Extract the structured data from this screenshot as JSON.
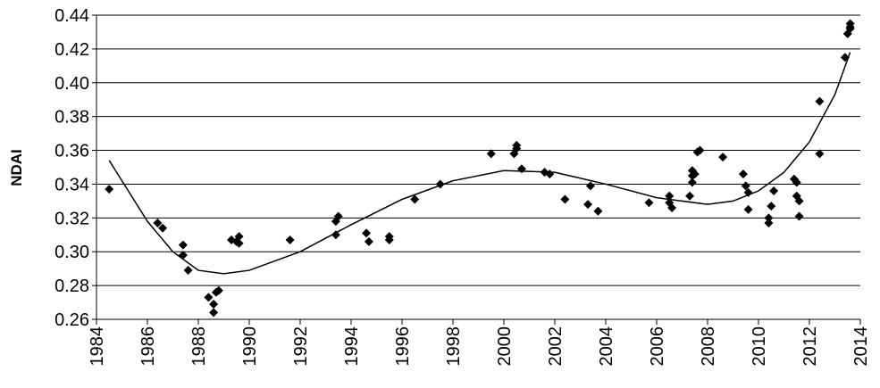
{
  "chart_data": {
    "type": "scatter",
    "y_label": "NDAI",
    "xlim": [
      1984,
      2014
    ],
    "xticks": [
      1984,
      1986,
      1988,
      1990,
      1992,
      1994,
      1996,
      1998,
      2000,
      2002,
      2004,
      2006,
      2008,
      2010,
      2012,
      2014
    ],
    "ylim": [
      0.26,
      0.44
    ],
    "yticks": [
      0.26,
      0.28,
      {
        "value": 0.3,
        "label": "0.30"
      },
      0.32,
      0.34,
      0.36,
      0.38,
      {
        "value": 0.4,
        "label": "0.40"
      },
      0.42,
      0.44
    ],
    "grid": true,
    "series": [
      {
        "color": "#000000",
        "marker": "diamond",
        "x": [
          1984.5,
          1986.4,
          1986.6,
          1987.4,
          1987.4,
          1987.6,
          1988.4,
          1988.6,
          1988.6,
          1988.7,
          1988.8,
          1989.3,
          1989.5,
          1989.6,
          1989.6,
          1991.6,
          1993.4,
          1993.5,
          1993.4,
          1994.6,
          1994.7,
          1995.5,
          1995.5,
          1996.5,
          1997.5,
          1999.5,
          2000.4,
          2000.5,
          2000.5,
          2000.7,
          2001.6,
          2001.8,
          2002.4,
          2003.3,
          2003.4,
          2003.7,
          2005.7,
          2006.5,
          2006.5,
          2006.6,
          2007.3,
          2007.4,
          2007.4,
          2007.4,
          2007.5,
          2007.6,
          2007.7,
          2008.6,
          2009.4,
          2009.5,
          2009.6,
          2009.6,
          2010.4,
          2010.4,
          2010.5,
          2010.6,
          2011.4,
          2011.5,
          2011.5,
          2011.6,
          2011.6,
          2012.4,
          2012.4,
          2013.4,
          2013.5,
          2013.6,
          2013.6,
          2013.6
        ],
        "values": [
          0.337,
          0.317,
          0.314,
          0.304,
          0.298,
          0.289,
          0.273,
          0.269,
          0.264,
          0.276,
          0.277,
          0.307,
          0.306,
          0.309,
          0.305,
          0.307,
          0.318,
          0.321,
          0.31,
          0.311,
          0.306,
          0.309,
          0.307,
          0.331,
          0.34,
          0.358,
          0.358,
          0.361,
          0.363,
          0.349,
          0.347,
          0.346,
          0.331,
          0.328,
          0.339,
          0.324,
          0.329,
          0.333,
          0.329,
          0.326,
          0.333,
          0.341,
          0.345,
          0.348,
          0.346,
          0.359,
          0.36,
          0.356,
          0.346,
          0.339,
          0.335,
          0.325,
          0.32,
          0.317,
          0.327,
          0.336,
          0.343,
          0.341,
          0.333,
          0.33,
          0.321,
          0.358,
          0.389,
          0.415,
          0.429,
          0.432,
          0.435,
          0.433
        ]
      },
      {
        "color": "#000000",
        "marker": "line",
        "x": [
          1984.5,
          1986,
          1987,
          1988,
          1989,
          1990,
          1992,
          1994,
          1996,
          1998,
          2000,
          2002,
          2004,
          2006,
          2008,
          2009,
          2010,
          2011,
          2012,
          2013,
          2013.6
        ],
        "values": [
          0.354,
          0.318,
          0.3,
          0.289,
          0.287,
          0.289,
          0.3,
          0.316,
          0.331,
          0.342,
          0.348,
          0.347,
          0.34,
          0.332,
          0.328,
          0.33,
          0.336,
          0.347,
          0.365,
          0.393,
          0.418
        ]
      }
    ]
  }
}
